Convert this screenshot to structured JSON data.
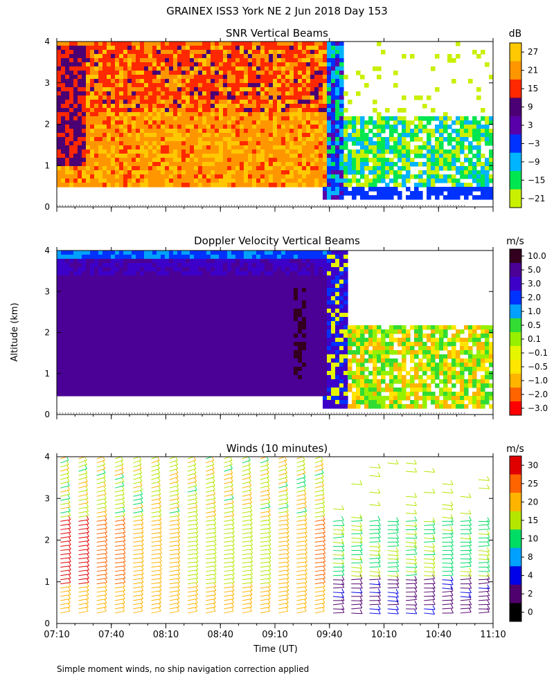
{
  "figure": {
    "title": "GRAINEX ISS3 York NE   2 Jun 2018 Day 153",
    "shared_ylabel": "Altitude (km)",
    "shared_xlabel": "Time (UT)",
    "footnote": "Simple moment winds, no ship navigation correction applied"
  },
  "chart_data": [
    {
      "type": "heatmap",
      "title": "SNR Vertical Beams",
      "x_ticks": [
        "07:10",
        "07:40",
        "08:10",
        "08:40",
        "09:10",
        "09:40",
        "10:10",
        "10:40",
        "11:10"
      ],
      "y_ticks": [
        "0",
        "1",
        "2",
        "3",
        "4"
      ],
      "ylim": [
        0,
        4
      ],
      "colorbar": {
        "unit": "dB",
        "labels": [
          "27",
          "21",
          "15",
          "9",
          "3",
          "−3",
          "−9",
          "−15",
          "−21"
        ],
        "colors": [
          "#ffc800",
          "#ff9600",
          "#ff2800",
          "#4b0073",
          "#5a00aa",
          "#0032ff",
          "#00b4ff",
          "#00e650",
          "#c8f000"
        ]
      },
      "regions": [
        {
          "time_range": [
            "07:10",
            "09:35"
          ],
          "alt_range_km": [
            0.5,
            4.0
          ],
          "dominant_db": [
            15,
            27
          ],
          "note": "strong returns"
        },
        {
          "time_range": [
            "09:40",
            "11:10"
          ],
          "alt_range_km": [
            0.2,
            2.2
          ],
          "dominant_db": [
            -21,
            -3
          ],
          "note": "weak returns"
        }
      ]
    },
    {
      "type": "heatmap",
      "title": "Doppler Velocity Vertical Beams",
      "x_ticks": [
        "07:10",
        "07:40",
        "08:10",
        "08:40",
        "09:10",
        "09:40",
        "10:10",
        "10:40",
        "11:10"
      ],
      "y_ticks": [
        "0",
        "1",
        "2",
        "3",
        "4"
      ],
      "ylim": [
        0,
        4
      ],
      "colorbar": {
        "unit": "m/s",
        "labels": [
          "10.0",
          "5.0",
          "3.0",
          "2.0",
          "1.0",
          "0.5",
          "0.1",
          "−0.1",
          "−0.5",
          "−1.0",
          "−2.0",
          "−3.0"
        ],
        "colors": [
          "#32001e",
          "#4b0096",
          "#3c00c8",
          "#0032ff",
          "#00a0ff",
          "#32dc32",
          "#96f000",
          "#e6f500",
          "#ffe600",
          "#ffb400",
          "#ff6400",
          "#ff0000"
        ]
      },
      "regions": [
        {
          "time_range": [
            "07:10",
            "09:35"
          ],
          "alt_range_km": [
            0.5,
            4.0
          ],
          "dominant_ms": [
            3.0,
            5.0
          ]
        },
        {
          "time_range": [
            "09:40",
            "11:10"
          ],
          "alt_range_km": [
            0.2,
            2.2
          ],
          "dominant_ms": [
            -2.0,
            0.5
          ]
        }
      ]
    },
    {
      "type": "barbs",
      "title": "Winds (10 minutes)",
      "x_ticks": [
        "07:10",
        "07:40",
        "08:10",
        "08:40",
        "09:10",
        "09:40",
        "10:10",
        "10:40",
        "11:10"
      ],
      "y_ticks": [
        "0",
        "1",
        "2",
        "3",
        "4"
      ],
      "ylim": [
        0,
        4
      ],
      "colorbar": {
        "unit": "m/s",
        "labels": [
          "30",
          "25",
          "20",
          "15",
          "10",
          "8",
          "4",
          "2",
          "0"
        ],
        "colors": [
          "#e10000",
          "#ff6400",
          "#ffb400",
          "#b4e600",
          "#00dc64",
          "#00a0ff",
          "#0000e6",
          "#50006e",
          "#000000"
        ]
      }
    }
  ]
}
